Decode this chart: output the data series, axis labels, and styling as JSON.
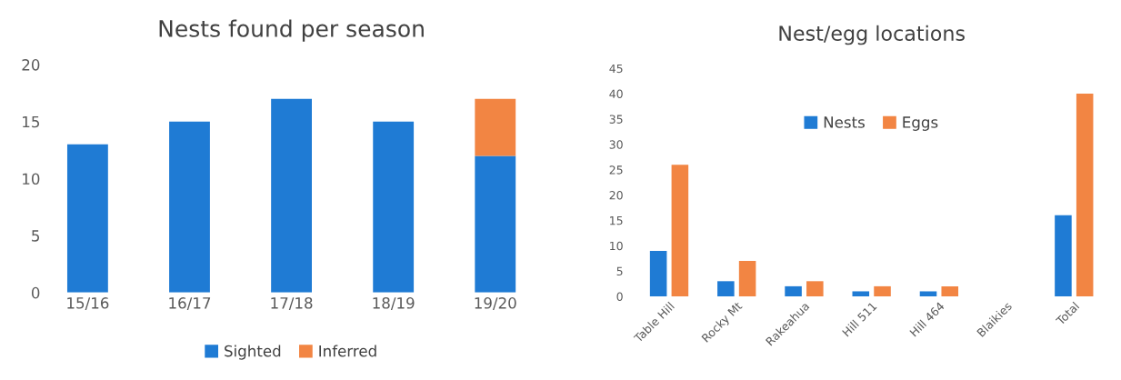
{
  "chart_data": [
    {
      "type": "bar",
      "title": "Nests found per season",
      "stacked": true,
      "categories": [
        "15/16",
        "16/17",
        "17/18",
        "18/19",
        "19/20"
      ],
      "series": [
        {
          "name": "Sighted",
          "color": "#1f7bd4",
          "values": [
            13,
            15,
            17,
            15,
            12
          ]
        },
        {
          "name": "Inferred",
          "color": "#f28543",
          "values": [
            0,
            0,
            0,
            0,
            5
          ]
        }
      ],
      "ylim": [
        0,
        20
      ],
      "yticks": [
        0,
        5,
        10,
        15,
        20
      ],
      "grid": false,
      "legend": "bottom"
    },
    {
      "type": "bar",
      "title": "Nest/egg locations",
      "categories": [
        "Table Hill",
        "Rocky Mt",
        "Rakeahua",
        "Hill 511",
        "Hill 464",
        "Blaikies",
        "Total"
      ],
      "series": [
        {
          "name": "Nests",
          "color": "#1f7bd4",
          "values": [
            9,
            3,
            2,
            1,
            1,
            0,
            16
          ]
        },
        {
          "name": "Eggs",
          "color": "#f28543",
          "values": [
            26,
            7,
            3,
            2,
            2,
            0,
            40
          ]
        }
      ],
      "ylim": [
        0,
        45
      ],
      "yticks": [
        0,
        5,
        10,
        15,
        20,
        25,
        30,
        35,
        40,
        45
      ],
      "grid": false,
      "legend": "top"
    }
  ]
}
